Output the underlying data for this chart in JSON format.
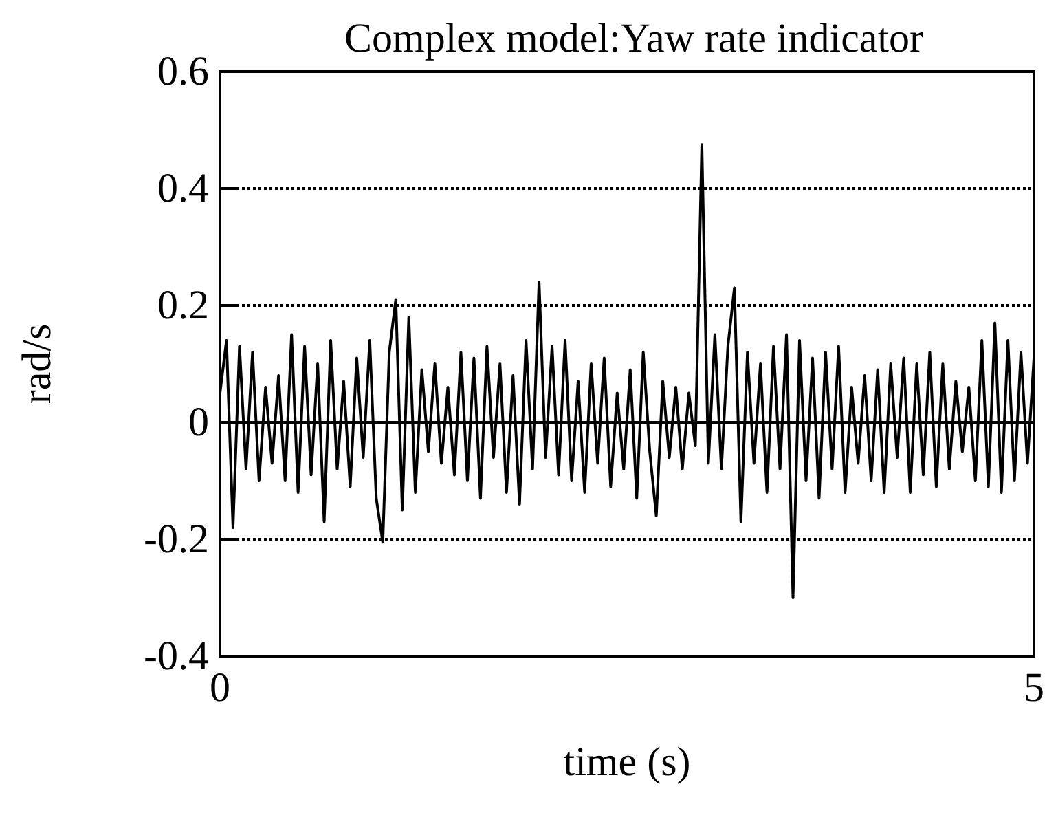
{
  "chart_data": {
    "type": "line",
    "title": "Complex model:Yaw rate indicator",
    "xlabel": "time (s)",
    "ylabel": "rad/s",
    "xlim": [
      0,
      5
    ],
    "xticks": [
      0,
      5
    ],
    "ylim": [
      -0.4,
      0.6
    ],
    "yticks": [
      -0.4,
      -0.2,
      0,
      0.2,
      0.4,
      0.6
    ],
    "grid": "y",
    "line_style": "solid",
    "series": [
      {
        "color": "#000000",
        "x": [
          0,
          0.04,
          0.08,
          0.12,
          0.16,
          0.2,
          0.24,
          0.28,
          0.32,
          0.36,
          0.4,
          0.44,
          0.48,
          0.52,
          0.56,
          0.6,
          0.64,
          0.68,
          0.72,
          0.76,
          0.8,
          0.84,
          0.88,
          0.92,
          0.96,
          1,
          1.04,
          1.08,
          1.12,
          1.16,
          1.2,
          1.24,
          1.28,
          1.32,
          1.36,
          1.4,
          1.44,
          1.48,
          1.52,
          1.56,
          1.6,
          1.64,
          1.68,
          1.72,
          1.76,
          1.8,
          1.84,
          1.88,
          1.92,
          1.96,
          2,
          2.04,
          2.08,
          2.12,
          2.16,
          2.2,
          2.24,
          2.28,
          2.32,
          2.36,
          2.4,
          2.44,
          2.48,
          2.52,
          2.56,
          2.6,
          2.64,
          2.68,
          2.72,
          2.76,
          2.8,
          2.84,
          2.88,
          2.92,
          2.96,
          3,
          3.04,
          3.08,
          3.12,
          3.16,
          3.2,
          3.24,
          3.28,
          3.32,
          3.36,
          3.4,
          3.44,
          3.48,
          3.52,
          3.56,
          3.6,
          3.64,
          3.68,
          3.72,
          3.76,
          3.8,
          3.84,
          3.88,
          3.92,
          3.96,
          4,
          4.04,
          4.08,
          4.12,
          4.16,
          4.2,
          4.24,
          4.28,
          4.32,
          4.36,
          4.4,
          4.44,
          4.48,
          4.52,
          4.56,
          4.6,
          4.64,
          4.68,
          4.72,
          4.76,
          4.8,
          4.84,
          4.88,
          4.92,
          4.96,
          5
        ],
        "values": [
          0.05,
          0.14,
          -0.18,
          0.13,
          -0.08,
          0.12,
          -0.1,
          0.06,
          -0.07,
          0.08,
          -0.1,
          0.15,
          -0.12,
          0.13,
          -0.09,
          0.1,
          -0.17,
          0.14,
          -0.08,
          0.07,
          -0.11,
          0.11,
          -0.06,
          0.14,
          -0.13,
          -0.205,
          0.12,
          0.21,
          -0.15,
          0.18,
          -0.12,
          0.09,
          -0.05,
          0.1,
          -0.07,
          0.06,
          -0.09,
          0.12,
          -0.1,
          0.11,
          -0.13,
          0.13,
          -0.06,
          0.1,
          -0.12,
          0.08,
          -0.14,
          0.14,
          -0.08,
          0.24,
          -0.06,
          0.13,
          -0.09,
          0.14,
          -0.1,
          0.07,
          -0.12,
          0.1,
          -0.07,
          0.11,
          -0.11,
          0.05,
          -0.08,
          0.09,
          -0.13,
          0.12,
          -0.05,
          -0.16,
          0.07,
          -0.06,
          0.06,
          -0.08,
          0.05,
          -0.04,
          0.475,
          -0.07,
          0.15,
          -0.08,
          0.13,
          0.23,
          -0.17,
          0.12,
          -0.07,
          0.1,
          -0.12,
          0.13,
          -0.08,
          0.15,
          -0.3,
          0.14,
          -0.1,
          0.11,
          -0.13,
          0.12,
          -0.08,
          0.13,
          -0.12,
          0.06,
          -0.07,
          0.08,
          -0.1,
          0.09,
          -0.12,
          0.1,
          -0.06,
          0.11,
          -0.12,
          0.1,
          -0.09,
          0.12,
          -0.11,
          0.1,
          -0.08,
          0.07,
          -0.05,
          0.06,
          -0.1,
          0.14,
          -0.11,
          0.17,
          -0.12,
          0.14,
          -0.1,
          0.12,
          -0.07,
          0.11
        ]
      }
    ]
  }
}
